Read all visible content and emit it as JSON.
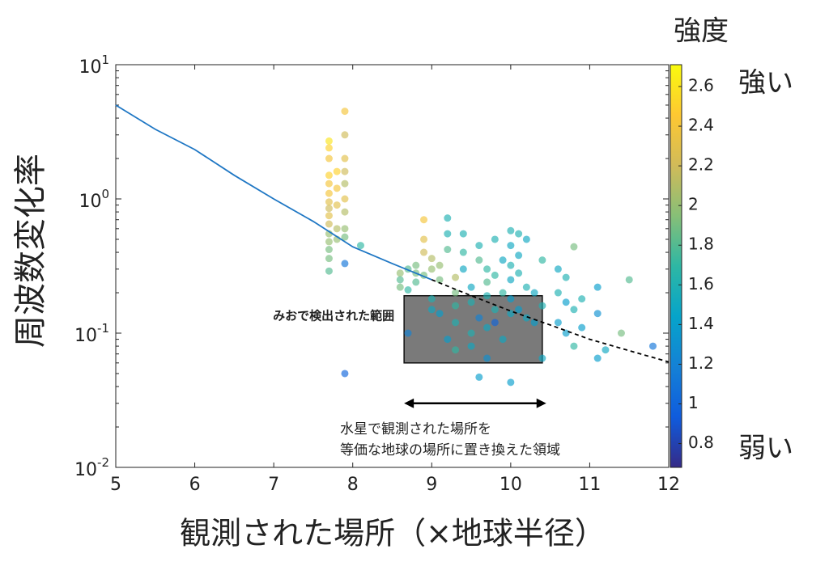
{
  "chart_data": {
    "type": "scatter",
    "xlabel": "観測された場所（×地球半径）",
    "ylabel": "周波数変化率",
    "xlim": [
      5,
      12
    ],
    "xticks": [
      5,
      6,
      7,
      8,
      9,
      10,
      11,
      12
    ],
    "ylim": [
      0.01,
      10
    ],
    "log_y": true,
    "yticks": [
      {
        "value": 10,
        "label": "10",
        "exponent": "1"
      },
      {
        "value": 1,
        "label": "10",
        "exponent": "0"
      },
      {
        "value": 0.1,
        "label": "10",
        "exponent": "-1"
      },
      {
        "value": 0.01,
        "label": "10",
        "exponent": "-2"
      }
    ],
    "colormap": [
      "#352a87",
      "#0f5cdd",
      "#1481d6",
      "#06a4ca",
      "#2eb7a4",
      "#87bf77",
      "#d1bb59",
      "#fec832",
      "#f9fb0e"
    ],
    "colorbar": {
      "title": "強度",
      "high_label": "強い",
      "low_label": "弱い",
      "clim": [
        0.68,
        2.71
      ],
      "ticks": [
        0.8,
        1,
        1.2,
        1.4,
        1.6,
        1.8,
        2,
        2.2,
        2.4,
        2.6
      ]
    },
    "x": [
      7.7,
      7.7,
      7.7,
      7.7,
      7.7,
      7.7,
      7.7,
      7.7,
      7.7,
      7.7,
      7.7,
      7.7,
      7.7,
      7.7,
      7.7,
      7.8,
      7.8,
      7.8,
      7.8,
      7.8,
      7.9,
      7.9,
      7.9,
      7.9,
      7.9,
      7.9,
      7.9,
      7.9,
      7.9,
      7.9,
      7.9,
      8.1,
      8.6,
      8.6,
      8.6,
      8.7,
      8.7,
      8.7,
      8.8,
      8.8,
      8.8,
      8.9,
      8.9,
      8.9,
      8.9,
      9.0,
      9.0,
      9.0,
      9.0,
      9.1,
      9.1,
      9.1,
      9.2,
      9.2,
      9.2,
      9.2,
      9.3,
      9.3,
      9.3,
      9.3,
      9.3,
      9.4,
      9.4,
      9.4,
      9.5,
      9.5,
      9.5,
      9.5,
      9.6,
      9.6,
      9.6,
      9.6,
      9.7,
      9.7,
      9.7,
      9.7,
      9.7,
      9.8,
      9.8,
      9.8,
      9.8,
      9.9,
      9.9,
      9.9,
      10.0,
      10.0,
      10.0,
      10.0,
      10.0,
      10.0,
      10.0,
      10.1,
      10.1,
      10.1,
      10.1,
      10.2,
      10.2,
      10.2,
      10.3,
      10.3,
      10.4,
      10.4,
      10.4,
      10.6,
      10.6,
      10.6,
      10.7,
      10.7,
      10.7,
      10.8,
      10.8,
      10.8,
      10.9,
      10.9,
      11.1,
      11.1,
      11.1,
      11.2,
      11.4,
      11.5,
      11.8
    ],
    "values": [
      2.7,
      2.4,
      2.0,
      1.5,
      1.3,
      1.1,
      0.95,
      0.85,
      0.75,
      0.65,
      0.55,
      0.48,
      0.42,
      0.36,
      0.29,
      1.6,
      1.2,
      0.9,
      0.6,
      0.5,
      4.5,
      3.0,
      2.0,
      1.6,
      1.3,
      1.0,
      0.8,
      0.6,
      0.52,
      0.33,
      0.05,
      0.45,
      0.28,
      0.25,
      0.22,
      0.3,
      0.21,
      0.1,
      0.28,
      0.24,
      0.32,
      0.7,
      0.5,
      0.4,
      0.27,
      0.36,
      0.3,
      0.18,
      0.15,
      0.32,
      0.25,
      0.14,
      0.72,
      0.55,
      0.42,
      0.09,
      0.26,
      0.2,
      0.16,
      0.12,
      0.075,
      0.55,
      0.4,
      0.3,
      0.22,
      0.17,
      0.1,
      0.08,
      0.45,
      0.35,
      0.13,
      0.047,
      0.3,
      0.24,
      0.19,
      0.11,
      0.065,
      0.5,
      0.27,
      0.15,
      0.12,
      0.35,
      0.2,
      0.09,
      0.58,
      0.45,
      0.32,
      0.25,
      0.18,
      0.14,
      0.043,
      0.55,
      0.38,
      0.28,
      0.15,
      0.5,
      0.22,
      0.13,
      0.2,
      0.12,
      0.35,
      0.16,
      0.065,
      0.3,
      0.2,
      0.12,
      0.26,
      0.17,
      0.1,
      0.44,
      0.15,
      0.08,
      0.18,
      0.11,
      0.22,
      0.14,
      0.065,
      0.075,
      0.1,
      0.25,
      0.08
    ],
    "color_values": [
      2.6,
      2.5,
      2.4,
      2.5,
      2.4,
      2.4,
      2.3,
      2.2,
      2.3,
      2.2,
      2.0,
      2.0,
      1.9,
      1.9,
      1.8,
      2.5,
      2.4,
      2.3,
      2.1,
      2.0,
      2.4,
      2.2,
      2.3,
      2.2,
      2.1,
      2.3,
      2.1,
      2.0,
      1.9,
      1.1,
      1.0,
      1.7,
      2.0,
      1.8,
      1.9,
      1.8,
      1.7,
      1.2,
      1.9,
      1.8,
      1.9,
      2.4,
      2.3,
      2.2,
      1.9,
      2.1,
      2.0,
      1.6,
      1.5,
      2.0,
      1.9,
      1.4,
      1.6,
      1.6,
      1.8,
      1.4,
      2.1,
      1.9,
      1.7,
      1.6,
      1.7,
      1.6,
      1.7,
      1.5,
      1.5,
      1.6,
      1.6,
      1.5,
      1.6,
      1.8,
      1.2,
      1.4,
      1.7,
      1.8,
      1.6,
      1.5,
      1.3,
      1.6,
      1.7,
      1.6,
      1.0,
      1.5,
      1.7,
      1.5,
      1.6,
      1.5,
      1.6,
      1.5,
      1.4,
      1.5,
      1.4,
      1.6,
      1.5,
      1.6,
      1.4,
      1.5,
      1.6,
      1.5,
      1.5,
      1.4,
      1.7,
      1.6,
      1.5,
      1.5,
      1.6,
      1.4,
      1.6,
      1.4,
      1.4,
      1.9,
      1.6,
      1.7,
      1.6,
      1.4,
      1.4,
      1.3,
      1.4,
      1.5,
      1.9,
      1.8,
      1.1
    ],
    "lines": [
      {
        "style": "solid",
        "color": "#1f77c4",
        "x": [
          5,
          5.5,
          6,
          6.5,
          7,
          7.5,
          8,
          8.5,
          9
        ],
        "values": [
          5.0,
          3.3,
          2.33,
          1.5,
          1.0,
          0.68,
          0.44,
          0.33,
          0.25
        ]
      },
      {
        "style": "dashed",
        "color": "#000000",
        "x": [
          9,
          9.5,
          10,
          10.5,
          11,
          11.5,
          12
        ],
        "values": [
          0.25,
          0.19,
          0.146,
          0.115,
          0.09,
          0.074,
          0.061
        ]
      }
    ],
    "region": {
      "label": "みおで検出された範囲",
      "xlim": [
        8.65,
        10.4
      ],
      "ylim": [
        0.06,
        0.19
      ]
    },
    "span": {
      "label": [
        "水星で観測された場所を",
        "等価な地球の場所に置き換えた領域"
      ],
      "x": [
        8.65,
        10.45
      ],
      "y": 0.03
    }
  }
}
